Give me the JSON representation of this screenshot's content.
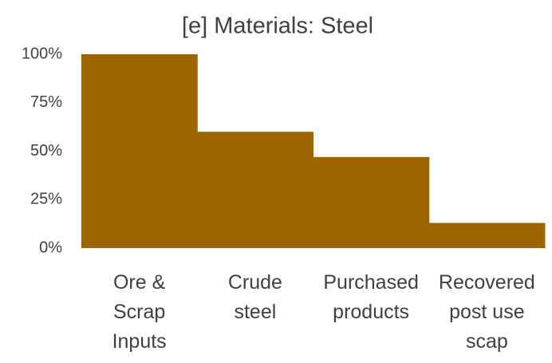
{
  "chart_data": {
    "type": "bar",
    "title": "[e]  Materials: Steel",
    "categories": [
      "Ore &\nScrap\nInputs",
      "Crude\nsteel",
      "Purchased\nproducts",
      "Recovered\npost use\nscap"
    ],
    "values": [
      100,
      60,
      47,
      13
    ],
    "color": "#9c6500",
    "ylim": [
      0,
      100
    ],
    "yticks": [
      {
        "value": 0,
        "label": "0%"
      },
      {
        "value": 25,
        "label": "25%"
      },
      {
        "value": 50,
        "label": "50%"
      },
      {
        "value": 75,
        "label": "75%"
      },
      {
        "value": 100,
        "label": "100%"
      }
    ],
    "grid": false
  }
}
